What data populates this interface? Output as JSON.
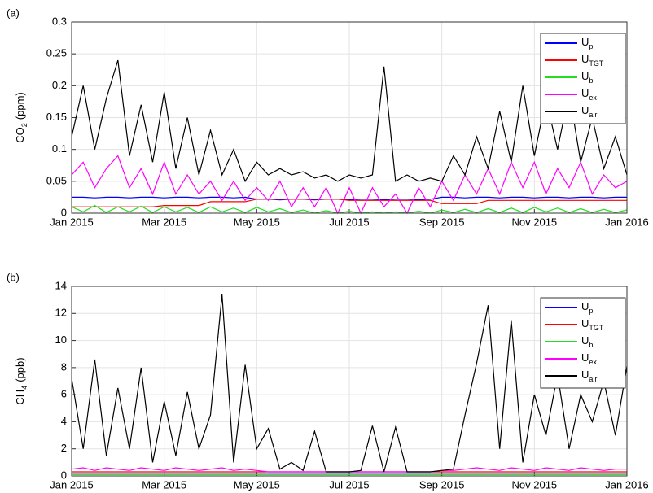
{
  "chart_data": [
    {
      "type": "line",
      "panel": "(a)",
      "ylabel": "CO",
      "ylabel_sub": "2",
      "ylabel_tail": "(ppm)",
      "x": [
        0,
        0.25,
        0.5,
        0.75,
        1,
        1.25,
        1.5,
        1.75,
        2,
        2.25,
        2.5,
        2.75,
        3,
        3.25,
        3.5,
        3.75,
        4,
        4.25,
        4.5,
        4.75,
        5,
        5.25,
        5.5,
        5.75,
        6,
        6.25,
        6.5,
        6.75,
        7,
        7.25,
        7.5,
        7.75,
        8,
        8.25,
        8.5,
        8.75,
        9,
        9.25,
        9.5,
        9.75,
        10,
        10.25,
        10.5,
        10.75,
        11,
        11.25,
        11.5,
        11.75,
        12
      ],
      "xlim": [
        0,
        12
      ],
      "xticks": [
        {
          "value": 0,
          "label": "Jan 2015"
        },
        {
          "value": 2,
          "label": "Mar 2015"
        },
        {
          "value": 4,
          "label": "May 2015"
        },
        {
          "value": 6,
          "label": "Jul 2015"
        },
        {
          "value": 8,
          "label": "Sep 2015"
        },
        {
          "value": 10,
          "label": "Nov 2015"
        },
        {
          "value": 12,
          "label": "Jan 2016"
        }
      ],
      "ylim": [
        0,
        0.3
      ],
      "yticks": [
        0,
        0.05,
        0.1,
        0.15,
        0.2,
        0.25,
        0.3
      ],
      "grid": true,
      "legend": "upper right",
      "series": [
        {
          "name": "U",
          "name_sub": "p",
          "color": "#0000ff",
          "values": [
            0.025,
            0.025,
            0.024,
            0.025,
            0.025,
            0.024,
            0.025,
            0.025,
            0.024,
            0.025,
            0.025,
            0.024,
            0.025,
            0.025,
            0.024,
            0.025,
            0.022,
            0.022,
            0.021,
            0.022,
            0.022,
            0.021,
            0.022,
            0.022,
            0.021,
            0.022,
            0.022,
            0.021,
            0.022,
            0.022,
            0.021,
            0.022,
            0.025,
            0.025,
            0.024,
            0.025,
            0.025,
            0.024,
            0.025,
            0.025,
            0.024,
            0.025,
            0.025,
            0.024,
            0.025,
            0.025,
            0.024,
            0.025,
            0.025
          ]
        },
        {
          "name": "U",
          "name_sub": "TGT",
          "color": "#ff0000",
          "values": [
            0.01,
            0.01,
            0.01,
            0.01,
            0.01,
            0.01,
            0.01,
            0.01,
            0.012,
            0.012,
            0.012,
            0.012,
            0.018,
            0.018,
            0.018,
            0.018,
            0.022,
            0.022,
            0.022,
            0.022,
            0.022,
            0.022,
            0.022,
            0.022,
            0.02,
            0.02,
            0.02,
            0.02,
            0.02,
            0.02,
            0.02,
            0.02,
            0.015,
            0.015,
            0.015,
            0.015,
            0.02,
            0.02,
            0.02,
            0.02,
            0.02,
            0.02,
            0.02,
            0.02,
            0.02,
            0.02,
            0.02,
            0.02,
            0.02
          ]
        },
        {
          "name": "U",
          "name_sub": "b",
          "color": "#22dd22",
          "values": [
            0.01,
            0.002,
            0.012,
            0.001,
            0.01,
            0.002,
            0.011,
            0.001,
            0.01,
            0.002,
            0.009,
            0.001,
            0.01,
            0.002,
            0.008,
            0.001,
            0.009,
            0.002,
            0.007,
            0.001,
            0.005,
            0,
            0.004,
            0,
            0.003,
            0,
            0.002,
            0,
            0.002,
            0,
            0.003,
            0,
            0.005,
            0.001,
            0.006,
            0.001,
            0.007,
            0.001,
            0.008,
            0.001,
            0.009,
            0.002,
            0.008,
            0.001,
            0.007,
            0.001,
            0.006,
            0.001,
            0.005
          ]
        },
        {
          "name": "U",
          "name_sub": "ex",
          "color": "#ff00ff",
          "values": [
            0.06,
            0.08,
            0.04,
            0.07,
            0.09,
            0.04,
            0.07,
            0.03,
            0.08,
            0.03,
            0.06,
            0.03,
            0.05,
            0.02,
            0.05,
            0.02,
            0.04,
            0.02,
            0.05,
            0.01,
            0.04,
            0.01,
            0.04,
            0,
            0.04,
            0,
            0.04,
            0.01,
            0.03,
            0,
            0.04,
            0.01,
            0.05,
            0.02,
            0.06,
            0.03,
            0.07,
            0.03,
            0.08,
            0.04,
            0.08,
            0.03,
            0.07,
            0.04,
            0.08,
            0.03,
            0.06,
            0.04,
            0.05
          ]
        },
        {
          "name": "U",
          "name_sub": "air",
          "color": "#000000",
          "values": [
            0.12,
            0.2,
            0.1,
            0.18,
            0.24,
            0.09,
            0.17,
            0.08,
            0.19,
            0.07,
            0.15,
            0.06,
            0.13,
            0.06,
            0.1,
            0.05,
            0.08,
            0.06,
            0.07,
            0.06,
            0.065,
            0.055,
            0.06,
            0.05,
            0.06,
            0.055,
            0.06,
            0.23,
            0.05,
            0.06,
            0.05,
            0.055,
            0.05,
            0.09,
            0.06,
            0.12,
            0.07,
            0.16,
            0.08,
            0.2,
            0.09,
            0.18,
            0.1,
            0.19,
            0.08,
            0.15,
            0.07,
            0.12,
            0.06
          ]
        }
      ]
    },
    {
      "type": "line",
      "panel": "(b)",
      "ylabel": "CH",
      "ylabel_sub": "4",
      "ylabel_tail": "(ppb)",
      "x": [
        0,
        0.25,
        0.5,
        0.75,
        1,
        1.25,
        1.5,
        1.75,
        2,
        2.25,
        2.5,
        2.75,
        3,
        3.25,
        3.5,
        3.75,
        4,
        4.25,
        4.5,
        4.75,
        5,
        5.25,
        5.5,
        5.75,
        6,
        6.25,
        6.5,
        6.75,
        7,
        7.25,
        7.5,
        7.75,
        8,
        8.25,
        8.5,
        8.75,
        9,
        9.25,
        9.5,
        9.75,
        10,
        10.25,
        10.5,
        10.75,
        11,
        11.25,
        11.5,
        11.75,
        12
      ],
      "xlim": [
        0,
        12
      ],
      "xticks": [
        {
          "value": 0,
          "label": "Jan 2015"
        },
        {
          "value": 2,
          "label": "Mar 2015"
        },
        {
          "value": 4,
          "label": "May 2015"
        },
        {
          "value": 6,
          "label": "Jul 2015"
        },
        {
          "value": 8,
          "label": "Sep 2015"
        },
        {
          "value": 10,
          "label": "Nov 2015"
        },
        {
          "value": 12,
          "label": "Jan 2016"
        }
      ],
      "ylim": [
        0,
        14
      ],
      "yticks": [
        0,
        2,
        4,
        6,
        8,
        10,
        12,
        14
      ],
      "grid": true,
      "legend": "upper right",
      "series": [
        {
          "name": "U",
          "name_sub": "p",
          "color": "#0000ff",
          "values": [
            0.2,
            0.2,
            0.2,
            0.2,
            0.2,
            0.2,
            0.2,
            0.2,
            0.2,
            0.2,
            0.2,
            0.2,
            0.2,
            0.2,
            0.2,
            0.2,
            0.2,
            0.2,
            0.2,
            0.2,
            0.2,
            0.2,
            0.2,
            0.2,
            0.2,
            0.2,
            0.2,
            0.2,
            0.2,
            0.2,
            0.2,
            0.2,
            0.2,
            0.2,
            0.2,
            0.2,
            0.2,
            0.2,
            0.2,
            0.2,
            0.2,
            0.2,
            0.2,
            0.2,
            0.2,
            0.2,
            0.2,
            0.2,
            0.2
          ]
        },
        {
          "name": "U",
          "name_sub": "TGT",
          "color": "#ff0000",
          "values": [
            0.3,
            0.3,
            0.3,
            0.3,
            0.3,
            0.3,
            0.3,
            0.3,
            0.3,
            0.3,
            0.3,
            0.3,
            0.3,
            0.3,
            0.3,
            0.3,
            0.3,
            0.3,
            0.3,
            0.3,
            0.3,
            0.3,
            0.3,
            0.3,
            0.3,
            0.3,
            0.3,
            0.3,
            0.3,
            0.3,
            0.3,
            0.3,
            0.3,
            0.3,
            0.3,
            0.3,
            0.3,
            0.3,
            0.3,
            0.3,
            0.3,
            0.3,
            0.3,
            0.3,
            0.3,
            0.3,
            0.3,
            0.3,
            0.3
          ]
        },
        {
          "name": "U",
          "name_sub": "b",
          "color": "#22dd22",
          "values": [
            0.1,
            0.1,
            0.1,
            0.1,
            0.1,
            0.1,
            0.1,
            0.1,
            0.1,
            0.1,
            0.1,
            0.1,
            0.1,
            0.1,
            0.1,
            0.1,
            0.1,
            0.1,
            0.1,
            0.1,
            0.1,
            0.1,
            0.1,
            0.1,
            0.1,
            0.1,
            0.1,
            0.1,
            0.1,
            0.1,
            0.1,
            0.1,
            0.1,
            0.1,
            0.1,
            0.1,
            0.1,
            0.1,
            0.1,
            0.1,
            0.1,
            0.1,
            0.1,
            0.1,
            0.1,
            0.1,
            0.1,
            0.1,
            0.1
          ]
        },
        {
          "name": "U",
          "name_sub": "ex",
          "color": "#ff00ff",
          "values": [
            0.5,
            0.6,
            0.4,
            0.6,
            0.5,
            0.4,
            0.6,
            0.5,
            0.4,
            0.6,
            0.5,
            0.4,
            0.5,
            0.6,
            0.4,
            0.5,
            0.4,
            0.3,
            0.3,
            0.3,
            0.3,
            0.3,
            0.3,
            0.3,
            0.3,
            0.3,
            0.3,
            0.3,
            0.3,
            0.3,
            0.3,
            0.3,
            0.4,
            0.4,
            0.5,
            0.6,
            0.5,
            0.4,
            0.6,
            0.5,
            0.4,
            0.6,
            0.5,
            0.4,
            0.6,
            0.5,
            0.4,
            0.5,
            0.5
          ]
        },
        {
          "name": "U",
          "name_sub": "air",
          "color": "#000000",
          "values": [
            7.2,
            2,
            8.6,
            1.5,
            6.5,
            2,
            8,
            1,
            5.5,
            1.5,
            6.2,
            2,
            4.5,
            13.4,
            1,
            8.2,
            2,
            3.5,
            0.5,
            1,
            0.4,
            3.3,
            0.3,
            0.3,
            0.3,
            0.4,
            3.7,
            0.3,
            3.6,
            0.3,
            0.3,
            0.3,
            0.4,
            0.5,
            4.5,
            8.3,
            12.6,
            2,
            11.5,
            1,
            6,
            3,
            7.5,
            2,
            6,
            4,
            7,
            3,
            8.1
          ]
        }
      ]
    }
  ]
}
